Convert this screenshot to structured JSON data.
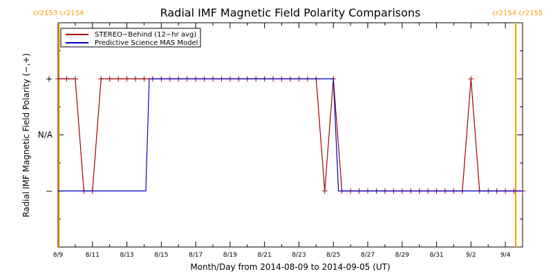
{
  "title": "Radial IMF Magnetic Field Polarity Comparisons",
  "xlabel": "Month/Day from 2014-08-09 to 2014-09-05 (UT)",
  "ylabel": "Radial IMF Magnetic Field Polarity (−,+)",
  "rotation_labels_left": "cr2153 cr2154",
  "rotation_labels_right": "cr2154 cr2155",
  "colors": {
    "stereo": "#a00000",
    "model": "#0000cc",
    "carrington": "#ff9900",
    "frame": "#000000"
  },
  "chart_data": {
    "type": "line",
    "title": "Radial IMF Magnetic Field Polarity Comparisons",
    "xlabel": "Month/Day from 2014-08-09 to 2014-09-05 (UT)",
    "ylabel": "Radial IMF Magnetic Field Polarity (−,+)",
    "x_unit": "days after 2014-08-09 00:00 UT",
    "xlim": [
      0,
      27
    ],
    "ylim": [
      -2,
      2
    ],
    "x_ticks": [
      {
        "label": "8/9",
        "x": 0
      },
      {
        "label": "8/11",
        "x": 2
      },
      {
        "label": "8/13",
        "x": 4
      },
      {
        "label": "8/15",
        "x": 6
      },
      {
        "label": "8/17",
        "x": 8
      },
      {
        "label": "8/19",
        "x": 10
      },
      {
        "label": "8/21",
        "x": 12
      },
      {
        "label": "8/23",
        "x": 14
      },
      {
        "label": "8/25",
        "x": 16
      },
      {
        "label": "8/27",
        "x": 18
      },
      {
        "label": "8/29",
        "x": 20
      },
      {
        "label": "8/31",
        "x": 22
      },
      {
        "label": "9/2",
        "x": 24
      },
      {
        "label": "9/4",
        "x": 26
      }
    ],
    "y_ticks": [
      {
        "label": "+",
        "y": 1
      },
      {
        "label": "N/A",
        "y": 0
      },
      {
        "label": "−",
        "y": -1
      }
    ],
    "legend": {
      "placement": "top-left",
      "entries": [
        {
          "name": "STEREO−Behind (12−hr avg)",
          "color": "#a00000"
        },
        {
          "name": "Predictive Science MAS Model",
          "color": "#0000cc"
        }
      ]
    },
    "series": [
      {
        "name": "STEREO−Behind (12−hr avg)",
        "color": "#a00000",
        "marker": "plus",
        "points": [
          [
            0.0,
            1
          ],
          [
            0.5,
            1
          ],
          [
            1.0,
            1
          ],
          [
            1.5,
            -1
          ],
          [
            2.0,
            -1
          ],
          [
            2.5,
            1
          ],
          [
            3.0,
            1
          ],
          [
            3.5,
            1
          ],
          [
            4.0,
            1
          ],
          [
            4.5,
            1
          ],
          [
            5.0,
            1
          ],
          [
            5.5,
            1
          ],
          [
            6.0,
            1
          ],
          [
            6.5,
            1
          ],
          [
            7.0,
            1
          ],
          [
            7.5,
            1
          ],
          [
            8.0,
            1
          ],
          [
            8.5,
            1
          ],
          [
            9.0,
            1
          ],
          [
            9.5,
            1
          ],
          [
            10.0,
            1
          ],
          [
            10.5,
            1
          ],
          [
            11.0,
            1
          ],
          [
            11.5,
            1
          ],
          [
            12.0,
            1
          ],
          [
            12.5,
            1
          ],
          [
            13.0,
            1
          ],
          [
            13.5,
            1
          ],
          [
            14.0,
            1
          ],
          [
            14.5,
            1
          ],
          [
            15.0,
            1
          ],
          [
            15.5,
            -1
          ],
          [
            16.0,
            1
          ],
          [
            16.5,
            -1
          ],
          [
            17.0,
            -1
          ],
          [
            17.5,
            -1
          ],
          [
            18.0,
            -1
          ],
          [
            18.5,
            -1
          ],
          [
            19.0,
            -1
          ],
          [
            19.5,
            -1
          ],
          [
            20.0,
            -1
          ],
          [
            20.5,
            -1
          ],
          [
            21.0,
            -1
          ],
          [
            21.5,
            -1
          ],
          [
            22.0,
            -1
          ],
          [
            22.5,
            -1
          ],
          [
            23.0,
            -1
          ],
          [
            23.5,
            -1
          ],
          [
            24.0,
            1
          ],
          [
            24.5,
            -1
          ],
          [
            25.0,
            -1
          ],
          [
            25.5,
            -1
          ],
          [
            26.0,
            -1
          ],
          [
            26.5,
            -1
          ],
          [
            27.0,
            -1
          ]
        ]
      },
      {
        "name": "Predictive Science MAS Model",
        "color": "#0000cc",
        "marker": "none",
        "points": [
          [
            0.0,
            -1
          ],
          [
            5.1,
            -1
          ],
          [
            5.3,
            1
          ],
          [
            16.0,
            1
          ],
          [
            16.3,
            -1
          ],
          [
            27.0,
            -1
          ]
        ]
      }
    ],
    "carrington_rotation_days": [
      0.05,
      26.6
    ],
    "grid": false
  }
}
